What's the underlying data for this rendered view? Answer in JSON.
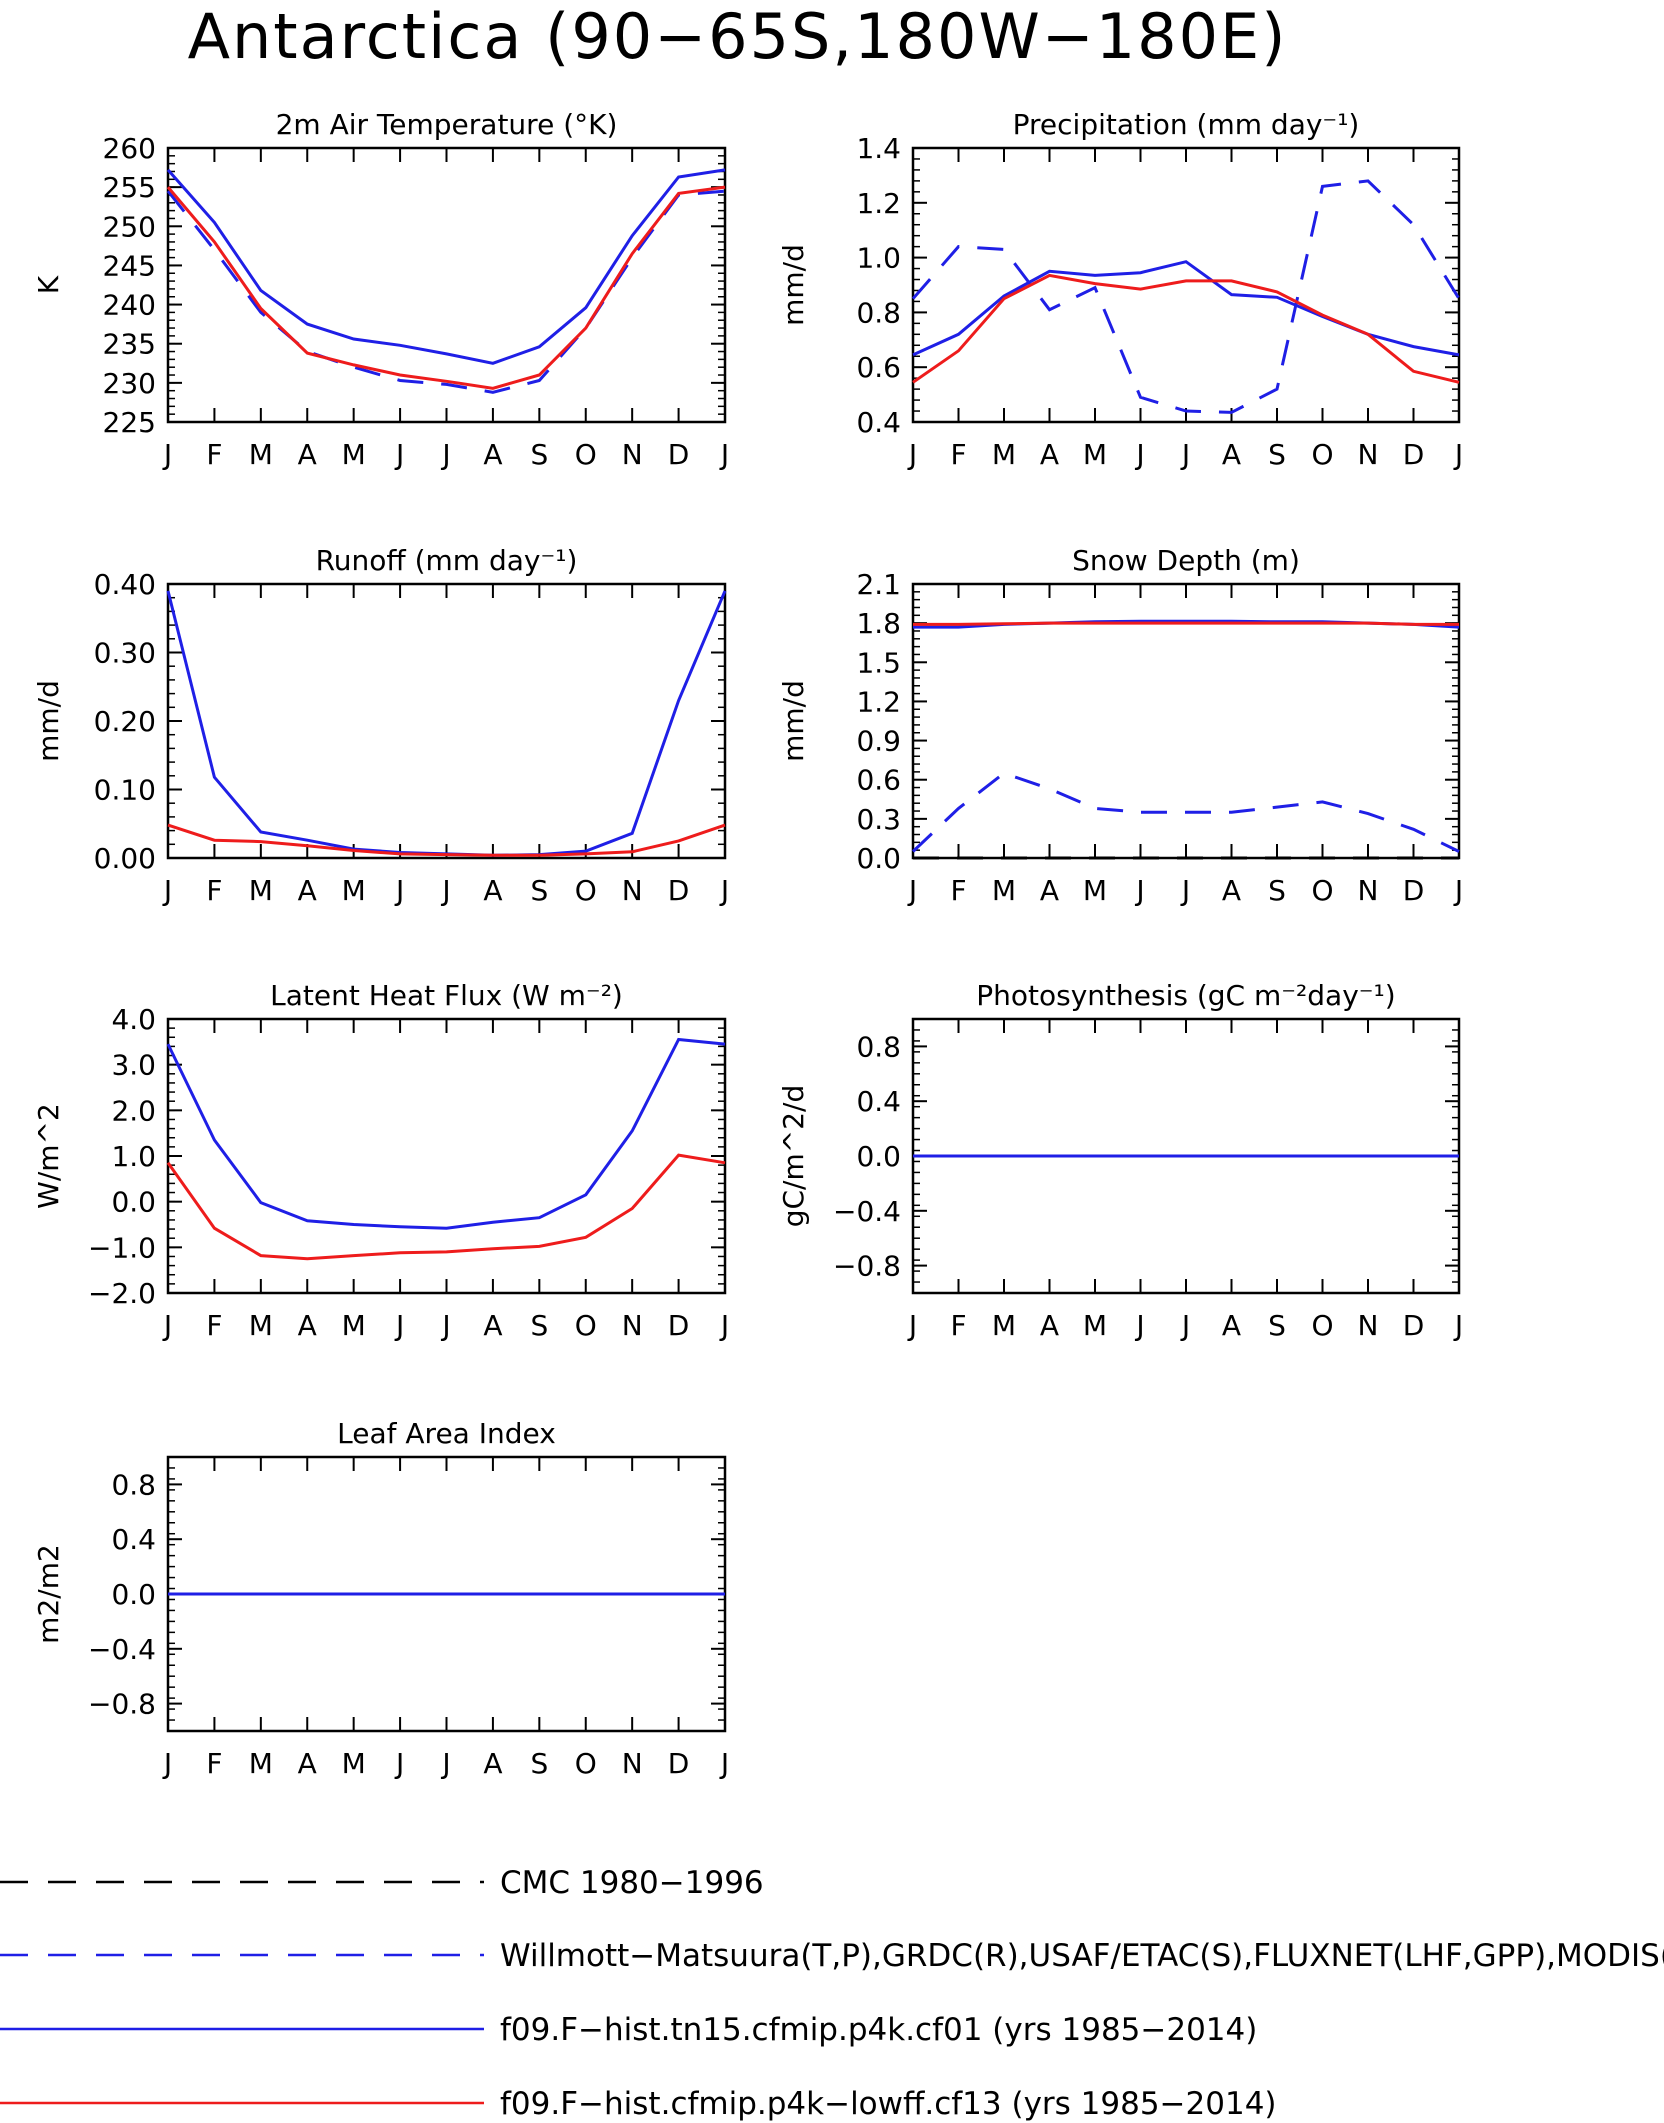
{
  "title": "Antarctica (90−65S,180W−180E)",
  "colors": {
    "obs": "#000000",
    "ref": "#1f1fe6",
    "case1": "#1f1fe6",
    "case2": "#ee1c1c"
  },
  "chart_data": [
    {
      "type": "line",
      "title": "2m Air Temperature (°K)",
      "ylabel": "K",
      "categories": [
        "J",
        "F",
        "M",
        "A",
        "M",
        "J",
        "J",
        "A",
        "S",
        "O",
        "N",
        "D",
        "J"
      ],
      "ylim": [
        225,
        260
      ],
      "yticks": [
        225,
        230,
        235,
        240,
        245,
        250,
        255,
        260
      ],
      "ytick_labels": [
        "225",
        "230",
        "235",
        "240",
        "245",
        "250",
        "255",
        "260"
      ],
      "series": [
        {
          "style": "dashed",
          "color": "#1f1fe6",
          "values": [
            254.5,
            247,
            239,
            234,
            232,
            230.3,
            229.8,
            228.8,
            230.3,
            237,
            246,
            254,
            254.5
          ]
        },
        {
          "style": "solid",
          "color": "#1f1fe6",
          "values": [
            257.2,
            250.5,
            241.8,
            237.5,
            235.6,
            234.8,
            233.7,
            232.5,
            234.6,
            239.6,
            248.8,
            256.3,
            257.2
          ]
        },
        {
          "style": "solid",
          "color": "#ee1c1c",
          "values": [
            255,
            248,
            239.5,
            233.8,
            232.3,
            231,
            230.2,
            229.3,
            231,
            237,
            246.5,
            254.2,
            255
          ]
        }
      ]
    },
    {
      "type": "line",
      "title": "Precipitation (mm day⁻¹)",
      "ylabel": "mm/d",
      "categories": [
        "J",
        "F",
        "M",
        "A",
        "M",
        "J",
        "J",
        "A",
        "S",
        "O",
        "N",
        "D",
        "J"
      ],
      "ylim": [
        0.4,
        1.4
      ],
      "yticks": [
        0.4,
        0.6,
        0.8,
        1.0,
        1.2,
        1.4
      ],
      "ytick_labels": [
        "0.4",
        "0.6",
        "0.8",
        "1.0",
        "1.2",
        "1.4"
      ],
      "series": [
        {
          "style": "dashed",
          "color": "#1f1fe6",
          "values": [
            0.85,
            1.04,
            1.03,
            0.81,
            0.89,
            0.49,
            0.44,
            0.435,
            0.52,
            1.26,
            1.28,
            1.12,
            0.85
          ]
        },
        {
          "style": "solid",
          "color": "#1f1fe6",
          "values": [
            0.645,
            0.72,
            0.86,
            0.95,
            0.935,
            0.945,
            0.985,
            0.865,
            0.855,
            0.785,
            0.72,
            0.675,
            0.645
          ]
        },
        {
          "style": "solid",
          "color": "#ee1c1c",
          "values": [
            0.545,
            0.66,
            0.85,
            0.935,
            0.905,
            0.885,
            0.915,
            0.915,
            0.875,
            0.79,
            0.72,
            0.585,
            0.545
          ]
        }
      ]
    },
    {
      "type": "line",
      "title": "Runoff (mm day⁻¹)",
      "ylabel": "mm/d",
      "categories": [
        "J",
        "F",
        "M",
        "A",
        "M",
        "J",
        "J",
        "A",
        "S",
        "O",
        "N",
        "D",
        "J"
      ],
      "ylim": [
        0,
        0.4
      ],
      "yticks": [
        0,
        0.1,
        0.2,
        0.3,
        0.4
      ],
      "ytick_labels": [
        "0.00",
        "0.10",
        "0.20",
        "0.30",
        "0.40"
      ],
      "series": [
        {
          "style": "solid",
          "color": "#1f1fe6",
          "values": [
            0.39,
            0.118,
            0.038,
            0.026,
            0.013,
            0.008,
            0.006,
            0.004,
            0.005,
            0.01,
            0.036,
            0.23,
            0.39
          ]
        },
        {
          "style": "solid",
          "color": "#ee1c1c",
          "values": [
            0.048,
            0.026,
            0.024,
            0.018,
            0.011,
            0.006,
            0.005,
            0.004,
            0.004,
            0.006,
            0.009,
            0.025,
            0.048
          ]
        }
      ]
    },
    {
      "type": "line",
      "title": "Snow Depth (m)",
      "ylabel": "mm/d",
      "categories": [
        "J",
        "F",
        "M",
        "A",
        "M",
        "J",
        "J",
        "A",
        "S",
        "O",
        "N",
        "D",
        "J"
      ],
      "ylim": [
        0,
        2.1
      ],
      "yticks": [
        0,
        0.3,
        0.6,
        0.9,
        1.2,
        1.5,
        1.8,
        2.1
      ],
      "ytick_labels": [
        "0.0",
        "0.3",
        "0.6",
        "0.9",
        "1.2",
        "1.5",
        "1.8",
        "2.1"
      ],
      "series": [
        {
          "style": "dashed",
          "color": "#000000",
          "values": [
            0,
            0,
            0,
            0,
            0,
            0,
            0,
            0,
            0,
            0,
            0,
            0,
            0
          ]
        },
        {
          "style": "dashed",
          "color": "#1f1fe6",
          "values": [
            0.05,
            0.38,
            0.65,
            0.53,
            0.38,
            0.35,
            0.35,
            0.35,
            0.39,
            0.43,
            0.34,
            0.22,
            0.05
          ]
        },
        {
          "style": "solid",
          "color": "#1f1fe6",
          "values": [
            1.77,
            1.77,
            1.79,
            1.8,
            1.81,
            1.815,
            1.815,
            1.815,
            1.81,
            1.81,
            1.8,
            1.79,
            1.77
          ]
        },
        {
          "style": "solid",
          "color": "#ee1c1c",
          "values": [
            1.79,
            1.79,
            1.795,
            1.8,
            1.8,
            1.8,
            1.8,
            1.8,
            1.8,
            1.8,
            1.8,
            1.79,
            1.79
          ]
        }
      ]
    },
    {
      "type": "line",
      "title": "Latent Heat Flux (W m⁻²)",
      "ylabel": "W/m^2",
      "categories": [
        "J",
        "F",
        "M",
        "A",
        "M",
        "J",
        "J",
        "A",
        "S",
        "O",
        "N",
        "D",
        "J"
      ],
      "ylim": [
        -2,
        4
      ],
      "yticks": [
        -2,
        -1,
        0,
        1,
        2,
        3,
        4
      ],
      "ytick_labels": [
        "−2.0",
        "−1.0",
        "0.0",
        "1.0",
        "2.0",
        "3.0",
        "4.0"
      ],
      "series": [
        {
          "style": "solid",
          "color": "#1f1fe6",
          "values": [
            3.45,
            1.35,
            -0.02,
            -0.42,
            -0.5,
            -0.55,
            -0.58,
            -0.45,
            -0.35,
            0.15,
            1.55,
            3.55,
            3.45
          ]
        },
        {
          "style": "solid",
          "color": "#ee1c1c",
          "values": [
            0.85,
            -0.58,
            -1.18,
            -1.25,
            -1.18,
            -1.12,
            -1.1,
            -1.03,
            -0.98,
            -0.78,
            -0.15,
            1.02,
            0.85
          ]
        }
      ]
    },
    {
      "type": "line",
      "title": "Photosynthesis (gC m⁻²day⁻¹)",
      "ylabel": "gC/m^2/d",
      "categories": [
        "J",
        "F",
        "M",
        "A",
        "M",
        "J",
        "J",
        "A",
        "S",
        "O",
        "N",
        "D",
        "J"
      ],
      "ylim": [
        -1,
        1
      ],
      "yticks": [
        -0.8,
        -0.4,
        0,
        0.4,
        0.8
      ],
      "ytick_labels": [
        "−0.8",
        "−0.4",
        "0.0",
        "0.4",
        "0.8"
      ],
      "series": [
        {
          "style": "solid",
          "color": "#1f1fe6",
          "values": [
            0,
            0,
            0,
            0,
            0,
            0,
            0,
            0,
            0,
            0,
            0,
            0,
            0
          ]
        }
      ]
    },
    {
      "type": "line",
      "title": "Leaf Area Index",
      "ylabel": "m2/m2",
      "categories": [
        "J",
        "F",
        "M",
        "A",
        "M",
        "J",
        "J",
        "A",
        "S",
        "O",
        "N",
        "D",
        "J"
      ],
      "ylim": [
        -1,
        1
      ],
      "yticks": [
        -0.8,
        -0.4,
        0,
        0.4,
        0.8
      ],
      "ytick_labels": [
        "−0.8",
        "−0.4",
        "0.0",
        "0.4",
        "0.8"
      ],
      "series": [
        {
          "style": "solid",
          "color": "#1f1fe6",
          "values": [
            0,
            0,
            0,
            0,
            0,
            0,
            0,
            0,
            0,
            0,
            0,
            0,
            0
          ]
        }
      ]
    }
  ],
  "legend": [
    {
      "label": "CMC 1980−1996",
      "style": "dashed",
      "color": "#000000"
    },
    {
      "label": "Willmott−Matsuura(T,P),GRDC(R),USAF/ETAC(S),FLUXNET(LHF,GPP),MODIS(LAI)",
      "style": "dashed",
      "color": "#1f1fe6"
    },
    {
      "label": "f09.F−hist.tn15.cfmip.p4k.cf01 (yrs 1985−2014)",
      "style": "solid",
      "color": "#1f1fe6"
    },
    {
      "label": "f09.F−hist.cfmip.p4k−lowff.cf13 (yrs 1985−2014)",
      "style": "solid",
      "color": "#ee1c1c"
    }
  ]
}
